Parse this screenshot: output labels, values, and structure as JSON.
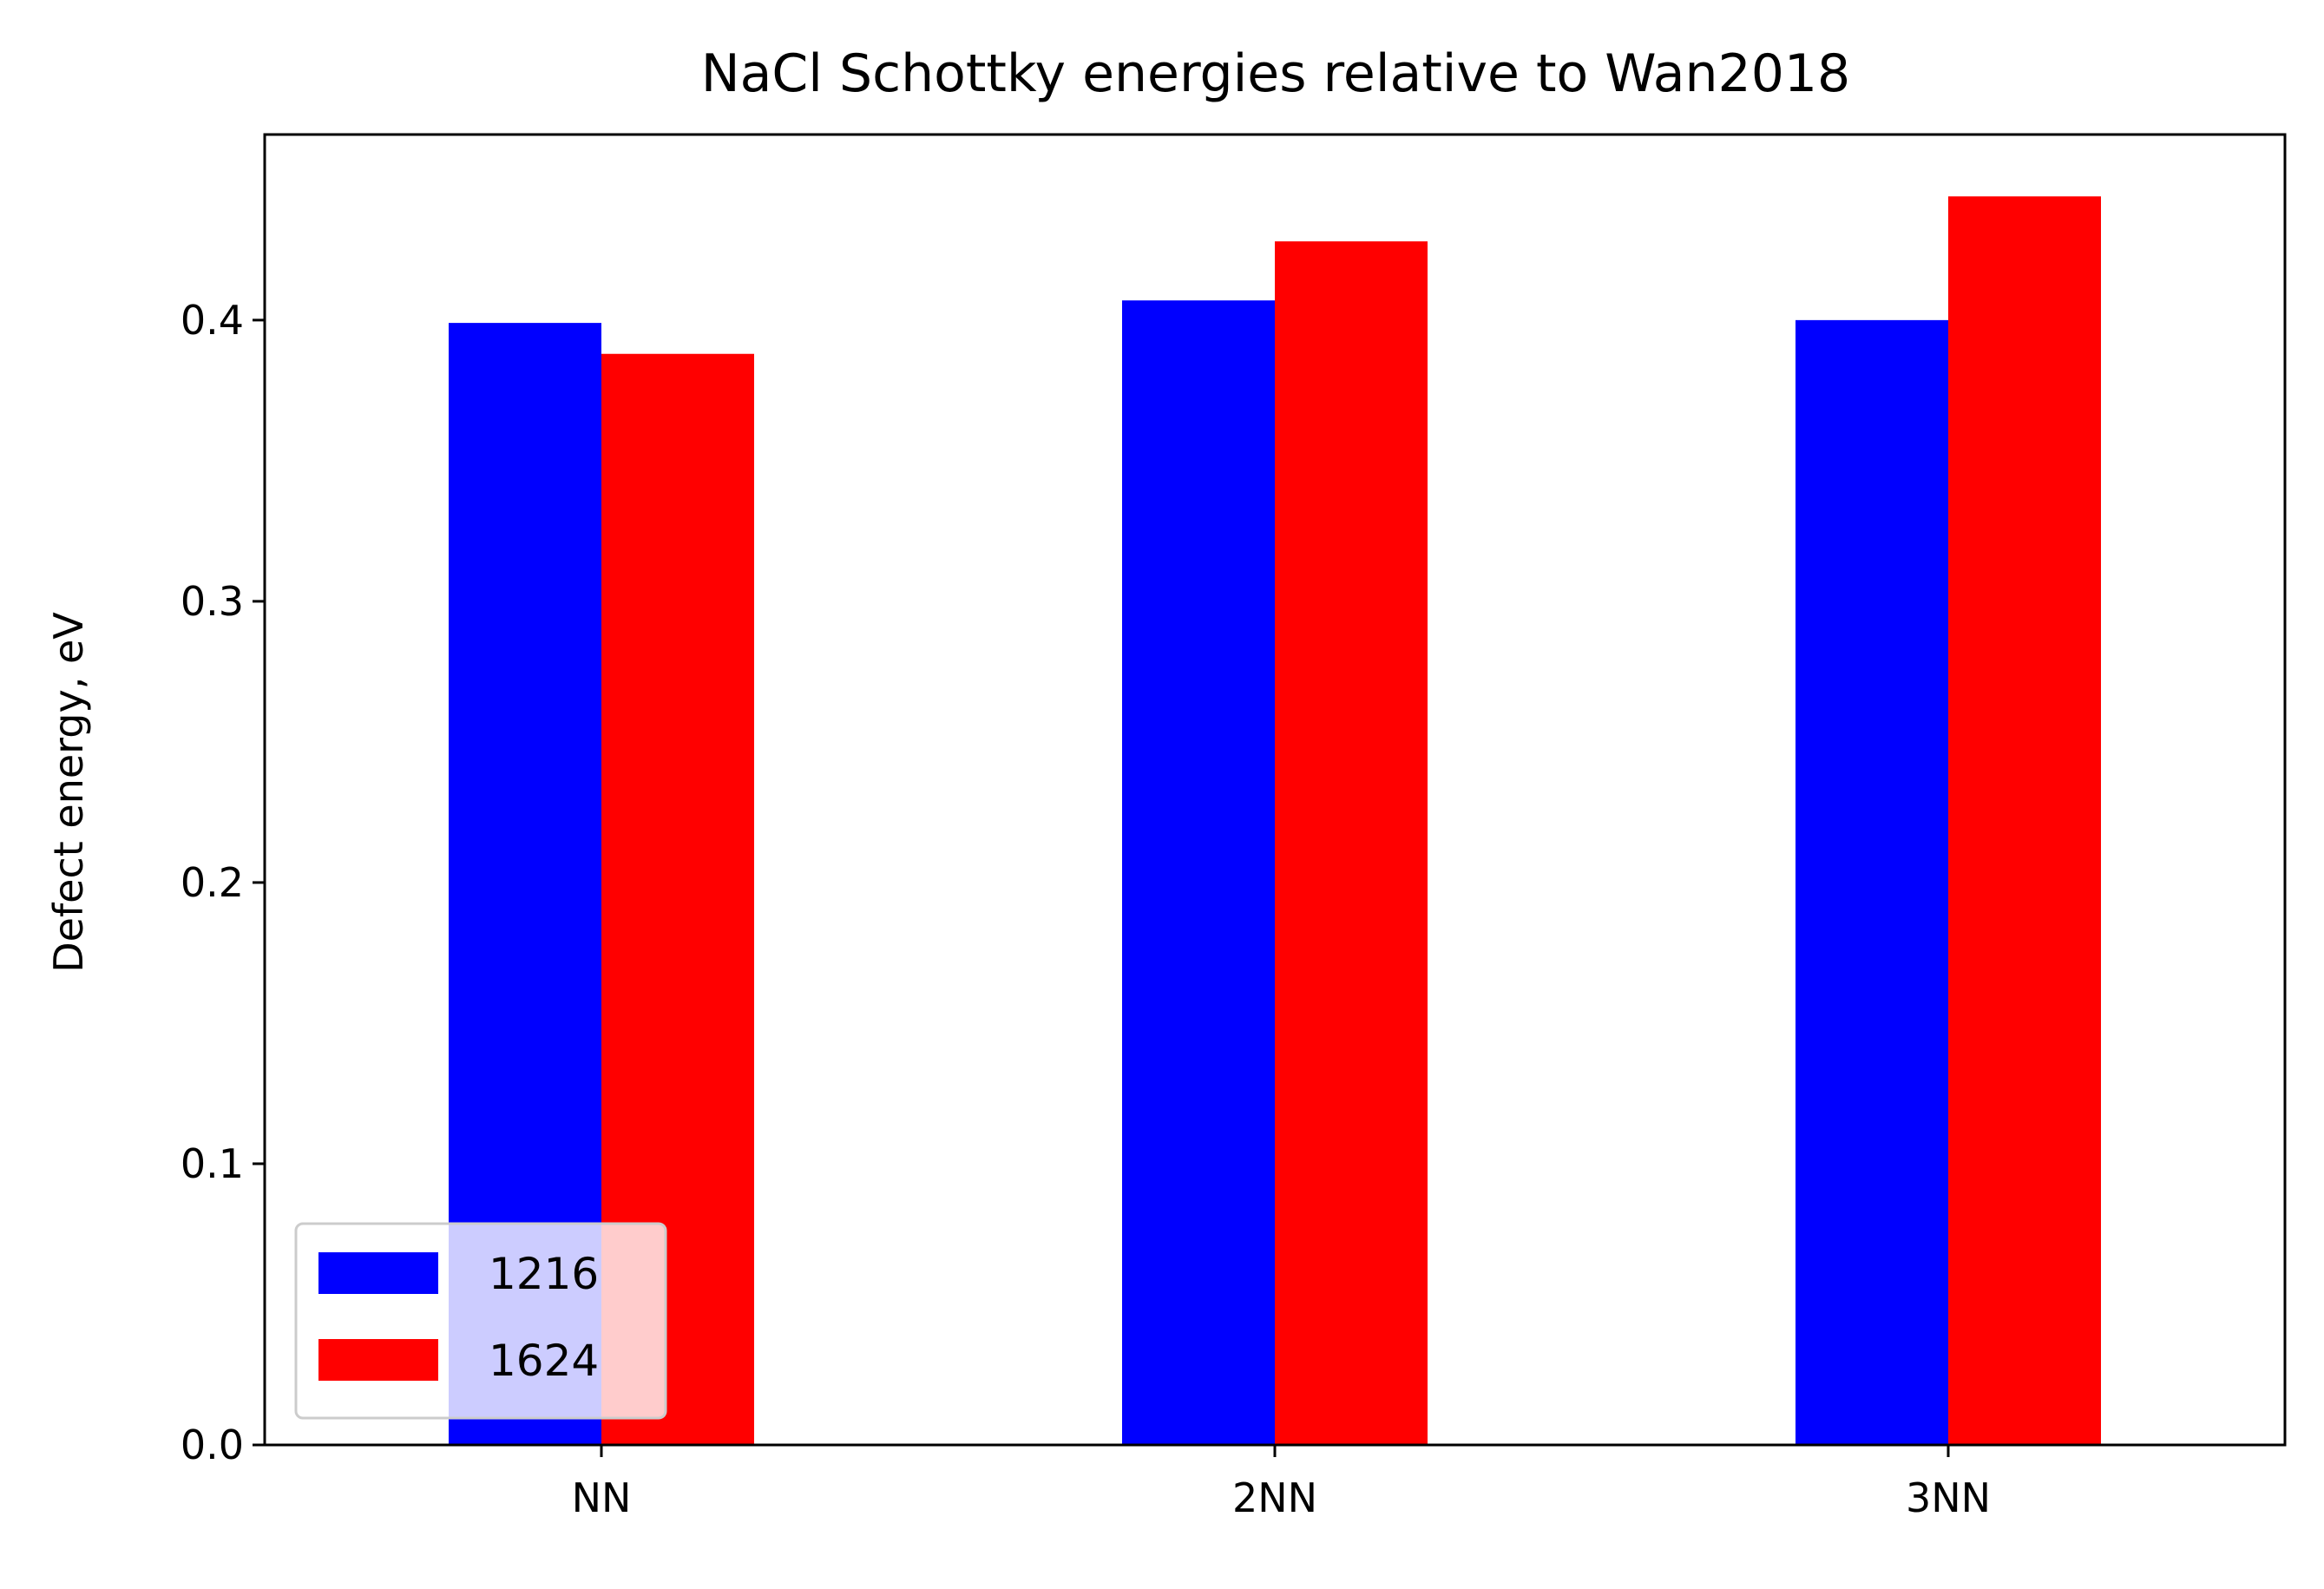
{
  "chart_data": {
    "type": "bar",
    "title": "NaCl Schottky energies relative to Wan2018",
    "xlabel": "",
    "ylabel": "Defect energy, eV",
    "categories": [
      "NN",
      "2NN",
      "3NN"
    ],
    "series": [
      {
        "name": "1216",
        "color": "#0000ff",
        "values": [
          0.399,
          0.407,
          0.4
        ]
      },
      {
        "name": "1624",
        "color": "#ff0000",
        "values": [
          0.388,
          0.428,
          0.444
        ]
      }
    ],
    "ylim": [
      0,
      0.466
    ],
    "yticks": [
      {
        "value": 0.0,
        "label": "0.0"
      },
      {
        "value": 0.1,
        "label": "0.1"
      },
      {
        "value": 0.2,
        "label": "0.2"
      },
      {
        "value": 0.3,
        "label": "0.3"
      },
      {
        "value": 0.4,
        "label": "0.4"
      }
    ],
    "grid": false,
    "legend": {
      "position": "lower-left"
    }
  }
}
